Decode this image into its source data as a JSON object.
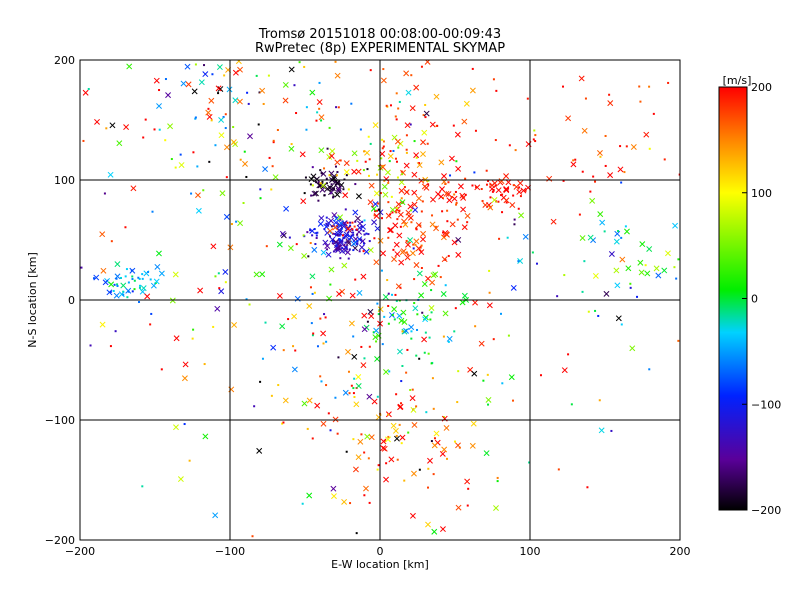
{
  "chart_data": {
    "type": "scatter",
    "title": "Tromsø 20151018 00:08:00-00:09:43",
    "subtitle": "RwPretec (8p) EXPERIMENTAL SKYMAP",
    "xlabel": "E-W location [km]",
    "ylabel": "N-S location [km]",
    "xlim": [
      -200,
      200
    ],
    "ylim": [
      -200,
      200
    ],
    "xticks": [
      -200,
      -100,
      0,
      100,
      200
    ],
    "yticks": [
      -200,
      -100,
      0,
      100,
      200
    ],
    "grid": true,
    "colorbar": {
      "label": "[m/s]",
      "min": -200,
      "max": 200,
      "ticks": [
        200,
        100,
        0,
        -100,
        -200
      ]
    },
    "marker_kinds": [
      "cross",
      "dot"
    ],
    "clusters": [
      {
        "x": -25,
        "y": 55,
        "spread": 10,
        "n": 140,
        "v": -120,
        "vspread": 25
      },
      {
        "x": -35,
        "y": 95,
        "spread": 7,
        "n": 60,
        "v": -175,
        "vspread": 15
      },
      {
        "x": 20,
        "y": 70,
        "spread": 25,
        "n": 160,
        "v": 185,
        "vspread": 20
      },
      {
        "x": 0,
        "y": 110,
        "spread": 20,
        "n": 50,
        "v": 80,
        "vspread": 40
      },
      {
        "x": 80,
        "y": 90,
        "spread": 8,
        "n": 40,
        "v": 195,
        "vspread": 10
      },
      {
        "x": -165,
        "y": 15,
        "spread": 9,
        "n": 50,
        "v": -40,
        "vspread": 25
      },
      {
        "x": 15,
        "y": -20,
        "spread": 18,
        "n": 60,
        "v": -10,
        "vspread": 30
      },
      {
        "x": 10,
        "y": -120,
        "spread": 30,
        "n": 90,
        "v": 170,
        "vspread": 40
      },
      {
        "x": 20,
        "y": 140,
        "spread": 35,
        "n": 60,
        "v": 180,
        "vspread": 30
      },
      {
        "x": -100,
        "y": 150,
        "spread": 60,
        "n": 160,
        "v": 30,
        "vspread": 150
      },
      {
        "x": 140,
        "y": 140,
        "spread": 40,
        "n": 50,
        "v": 190,
        "vspread": 30
      },
      {
        "x": 160,
        "y": 30,
        "spread": 25,
        "n": 40,
        "v": -20,
        "vspread": 60
      },
      {
        "x": -40,
        "y": -20,
        "spread": 40,
        "n": 60,
        "v": 60,
        "vspread": 120
      },
      {
        "x": 0,
        "y": 0,
        "spread": 120,
        "n": 260,
        "v": 60,
        "vspread": 150
      }
    ]
  }
}
